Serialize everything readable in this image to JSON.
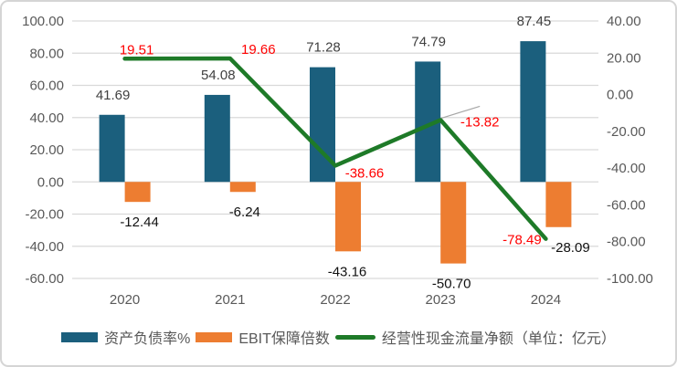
{
  "chart_data": {
    "type": "combo",
    "title": "",
    "categories": [
      "2020",
      "2021",
      "2022",
      "2023",
      "2024"
    ],
    "series": [
      {
        "name": "资产负债率%",
        "type": "bar",
        "axis": "left",
        "color": "#1B5F7D",
        "label_color": "#404040",
        "values": [
          41.69,
          54.08,
          71.28,
          74.79,
          87.45
        ]
      },
      {
        "name": "EBIT保障倍数",
        "type": "bar",
        "axis": "left",
        "color": "#ED7D31",
        "label_color": "#111111",
        "values": [
          -12.44,
          -6.24,
          -43.16,
          -50.7,
          -28.09
        ]
      },
      {
        "name": "经营性现金流量净额（单位：亿元）",
        "type": "line",
        "axis": "right",
        "color": "#1E7A28",
        "label_color": "#FF0000",
        "values": [
          19.51,
          19.66,
          -38.66,
          -13.82,
          -78.49
        ]
      }
    ],
    "left_axis": {
      "min": -60,
      "max": 100,
      "step": 20,
      "tick_labels": [
        "100.00",
        "80.00",
        "60.00",
        "40.00",
        "20.00",
        "0.00",
        "-20.00",
        "-40.00",
        "-60.00"
      ]
    },
    "right_axis": {
      "min": -100,
      "max": 40,
      "step": 20,
      "tick_labels": [
        "40.00",
        "20.00",
        "0.00",
        "-20.00",
        "-40.00",
        "-60.00",
        "-80.00",
        "-100.00"
      ]
    },
    "gridlines": true,
    "legend_position": "bottom",
    "colors": {
      "grid": "#D9D9D9",
      "axis_text": "#595959",
      "category_text": "#595959",
      "leader_line": "#A6A6A6"
    }
  }
}
